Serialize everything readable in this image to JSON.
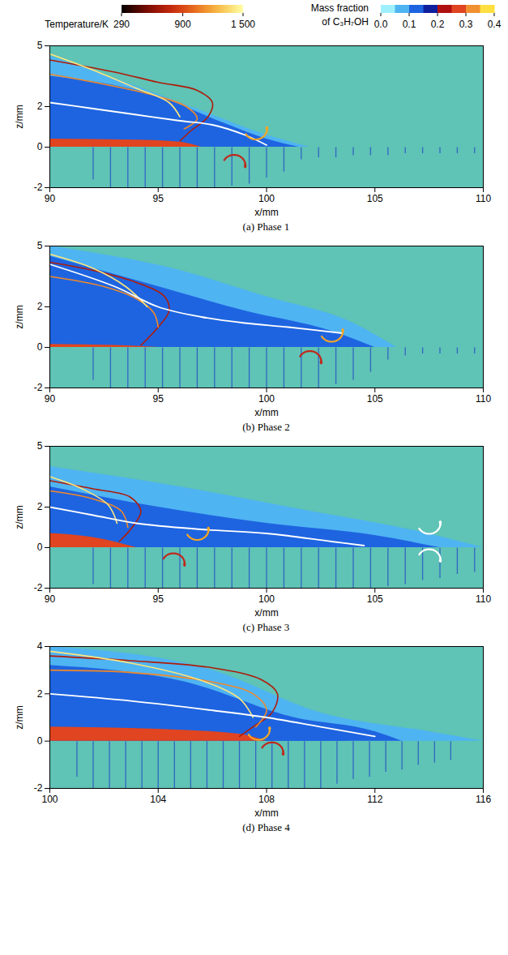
{
  "colorbars": [
    {
      "title": "Temperature/K",
      "range": [
        290,
        1500
      ],
      "ticks": [
        290,
        900,
        {
          "value": 1500,
          "label": "1 500"
        }
      ]
    },
    {
      "title": "Mass fraction of C₃H₇OH",
      "range": [
        0,
        0.4
      ],
      "ticks": [
        {
          "value": 0,
          "label": "0.0"
        },
        0.1,
        0.2,
        0.3,
        0.4
      ]
    }
  ],
  "chart_data": [
    {
      "type": "contour",
      "title": "(a) Phase 1",
      "xlabel": "x/mm",
      "ylabel": "z/mm",
      "xlim": [
        90,
        110
      ],
      "xticks": [
        90,
        95,
        100,
        105,
        110
      ],
      "ylim": [
        -2,
        5
      ],
      "yticks": [
        -2,
        0,
        2,
        5
      ],
      "mass_fraction_regions": [
        {
          "value": 0.05,
          "x": [
            90,
            94,
            97,
            100,
            102
          ],
          "z": [
            4.5,
            3,
            1.8,
            0.6,
            0
          ]
        },
        {
          "value": 0.1,
          "x": [
            90,
            95,
            98,
            100,
            101.5
          ],
          "z": [
            3.5,
            2.5,
            1.2,
            0.4,
            0
          ]
        },
        {
          "value": 0.15,
          "x": [
            90,
            92,
            95,
            97,
            99,
            100
          ],
          "z": [
            2.3,
            2.0,
            1.4,
            0.8,
            0.3,
            0
          ]
        },
        {
          "value": 0.25,
          "x": [
            90,
            94,
            96,
            97
          ],
          "z": [
            0.4,
            0.35,
            0.25,
            0
          ]
        }
      ],
      "jets": {
        "x": [
          92,
          92.8,
          93.6,
          94.4,
          95.2,
          96,
          96.8,
          97.6,
          98.4,
          99.2,
          100,
          100.8,
          101.6,
          102.4,
          103.2,
          104,
          104.8,
          105.6,
          106.4,
          107.2,
          108,
          108.8,
          109.6
        ],
        "z": [
          -1.6,
          -2,
          -2,
          -2,
          -2,
          -2,
          -2,
          -2,
          -1.9,
          -1.8,
          -1.5,
          -1.2,
          -0.6,
          -0.5,
          -0.5,
          -0.4,
          -0.4,
          -0.4,
          -0.3,
          -0.3,
          -0.3,
          -0.3,
          -0.3
        ]
      },
      "isotherms": [
        {
          "value": 700,
          "x": [
            90,
            93,
            95,
            96.8,
            97.5,
            97.3,
            96.5,
            96
          ],
          "z": [
            4.3,
            3.7,
            3.2,
            2.8,
            2.2,
            1.5,
            0.8,
            0.3
          ]
        },
        {
          "value": 1100,
          "x": [
            90,
            93,
            95,
            96.3,
            96.8,
            96.2
          ],
          "z": [
            3.6,
            3.0,
            2.5,
            2.0,
            1.4,
            0.9
          ]
        },
        {
          "value": 1400,
          "x": [
            90,
            92,
            94,
            95.5,
            96
          ],
          "z": [
            4.6,
            3.8,
            2.9,
            2.2,
            1.5
          ]
        }
      ],
      "curves": [
        {
          "color": "#ffffff",
          "x": [
            90,
            92,
            94,
            96,
            97.5,
            99,
            100
          ],
          "z": [
            2.2,
            1.9,
            1.6,
            1.3,
            1.1,
            0.6,
            0.1
          ]
        }
      ],
      "vortices": [
        {
          "x": 99.5,
          "z": 0.9,
          "color": "#f5a623",
          "direction": "counterclockwise"
        },
        {
          "x": 98.5,
          "z": -0.9,
          "color": "#c0281c",
          "direction": "clockwise"
        }
      ]
    },
    {
      "type": "contour",
      "title": "(b) Phase 2",
      "xlabel": "x/mm",
      "ylabel": "z/mm",
      "xlim": [
        90,
        110
      ],
      "xticks": [
        90,
        95,
        100,
        105,
        110
      ],
      "ylim": [
        -2,
        5
      ],
      "yticks": [
        -2,
        0,
        2,
        5
      ],
      "mass_fraction_regions": [
        {
          "value": 0.05,
          "x": [
            90,
            96,
            100,
            104,
            106
          ],
          "z": [
            5,
            3.8,
            2.5,
            1.2,
            0
          ]
        },
        {
          "value": 0.1,
          "x": [
            90,
            95,
            99,
            103,
            105
          ],
          "z": [
            4.5,
            3,
            1.8,
            0.8,
            0
          ]
        },
        {
          "value": 0.15,
          "x": [
            90,
            93,
            95,
            98,
            102,
            104
          ],
          "z": [
            3,
            2.3,
            1.5,
            0.9,
            0.5,
            0
          ]
        },
        {
          "value": 0.25,
          "x": [
            90,
            93,
            95
          ],
          "z": [
            0.15,
            0.1,
            0
          ]
        }
      ],
      "jets": {
        "x": [
          92,
          92.8,
          93.6,
          94.4,
          95.2,
          96,
          96.8,
          97.6,
          98.4,
          99.2,
          100,
          100.8,
          101.6,
          102.4,
          103.2,
          104,
          104.8,
          105.6,
          106.4,
          107.2,
          108,
          108.8,
          109.6
        ],
        "z": [
          -1.6,
          -2,
          -2,
          -2,
          -2,
          -2,
          -2,
          -2,
          -2,
          -2,
          -2,
          -2,
          -2,
          -2,
          -1.8,
          -1.6,
          -1.2,
          -0.6,
          -0.4,
          -0.3,
          -0.3,
          -0.3,
          -0.3
        ]
      },
      "isotherms": [
        {
          "value": 700,
          "x": [
            90,
            92,
            94,
            95.3,
            95.5,
            95,
            94.2
          ],
          "z": [
            4.2,
            3.8,
            3.2,
            2.5,
            1.8,
            1.0,
            0.1
          ]
        },
        {
          "value": 1100,
          "x": [
            90,
            92.5,
            94,
            94.8,
            95
          ],
          "z": [
            3.5,
            3.0,
            2.4,
            1.7,
            1.0
          ]
        },
        {
          "value": 1400,
          "x": [
            90,
            92,
            93.5,
            94.5
          ],
          "z": [
            4.6,
            3.9,
            3.0,
            2.0
          ]
        }
      ],
      "curves": [
        {
          "color": "#ffffff",
          "x": [
            90,
            93,
            95,
            97,
            99,
            101,
            103.5
          ],
          "z": [
            4.1,
            3.0,
            2.0,
            1.5,
            1.2,
            1.0,
            0.7
          ]
        }
      ],
      "vortices": [
        {
          "x": 103,
          "z": 0.8,
          "color": "#f5a623",
          "direction": "counterclockwise"
        },
        {
          "x": 102,
          "z": -0.7,
          "color": "#c0281c",
          "direction": "clockwise"
        }
      ]
    },
    {
      "type": "contour",
      "title": "(c) Phase 3",
      "xlabel": "x/mm",
      "ylabel": "z/mm",
      "xlim": [
        90,
        110
      ],
      "xticks": [
        90,
        95,
        100,
        105,
        110
      ],
      "ylim": [
        -2,
        5
      ],
      "yticks": [
        -2,
        0,
        2,
        5
      ],
      "mass_fraction_regions": [
        {
          "value": 0.05,
          "x": [
            90,
            96,
            102,
            107,
            110
          ],
          "z": [
            4,
            3,
            1.8,
            0.8,
            0
          ]
        },
        {
          "value": 0.1,
          "x": [
            90,
            95,
            100,
            105,
            108
          ],
          "z": [
            3,
            2,
            1.2,
            0.6,
            0
          ]
        },
        {
          "value": 0.15,
          "x": [
            90,
            94,
            97,
            100,
            104
          ],
          "z": [
            2,
            1.3,
            1.0,
            0.8,
            0
          ]
        },
        {
          "value": 0.25,
          "x": [
            90,
            92,
            94
          ],
          "z": [
            0.7,
            0.5,
            0
          ]
        },
        {
          "value": 0.3,
          "x": [
            90,
            91.5,
            93
          ],
          "z": [
            0.4,
            0.3,
            0
          ]
        }
      ],
      "jets": {
        "x": [
          92,
          92.8,
          93.6,
          94.4,
          95.2,
          96,
          96.8,
          97.6,
          98.4,
          99.2,
          100,
          100.8,
          101.6,
          102.4,
          103.2,
          104,
          104.8,
          105.6,
          106.4,
          107.2,
          108,
          108.8,
          109.6
        ],
        "z": [
          -1.8,
          -2,
          -2,
          -2,
          -2,
          -2,
          -2,
          -2,
          -2,
          -2,
          -2,
          -2,
          -2,
          -2,
          -2,
          -2,
          -2,
          -1.9,
          -1.8,
          -1.6,
          -1.5,
          -1.3,
          -1.2
        ]
      },
      "isotherms": [
        {
          "value": 700,
          "x": [
            90,
            92,
            93.7,
            94.2,
            93.8,
            93.2
          ],
          "z": [
            3.3,
            2.9,
            2.5,
            1.8,
            1.0,
            0.3
          ]
        },
        {
          "value": 1100,
          "x": [
            90,
            92,
            93.3,
            93.6
          ],
          "z": [
            2.8,
            2.4,
            1.8,
            1.0
          ]
        },
        {
          "value": 1400,
          "x": [
            90,
            91.5,
            92.7,
            93.1
          ],
          "z": [
            3.5,
            2.9,
            2.1,
            1.2
          ]
        }
      ],
      "curves": [
        {
          "color": "#ffffff",
          "x": [
            90,
            92,
            94,
            97,
            100,
            103,
            104.5
          ],
          "z": [
            2,
            1.6,
            1.2,
            0.9,
            0.7,
            0.3,
            0.1
          ]
        }
      ],
      "vortices": [
        {
          "x": 96.8,
          "z": 0.9,
          "color": "#f5a623",
          "direction": "counterclockwise"
        },
        {
          "x": 95.7,
          "z": -0.8,
          "color": "#c0281c",
          "direction": "clockwise"
        },
        {
          "x": 107.5,
          "z": 1.2,
          "color": "#ffffff",
          "direction": "counterclockwise"
        },
        {
          "x": 107.5,
          "z": -0.6,
          "color": "#ffffff",
          "direction": "clockwise"
        }
      ]
    },
    {
      "type": "contour",
      "title": "(d) Phase 4",
      "xlabel": "x/mm",
      "ylabel": "z/mm",
      "xlim": [
        100,
        116
      ],
      "xticks": [
        100,
        104,
        108,
        112,
        116
      ],
      "ylim": [
        -2,
        4
      ],
      "yticks": [
        -2,
        0,
        2,
        4
      ],
      "mass_fraction_regions": [
        {
          "value": 0.05,
          "x": [
            100,
            106,
            110,
            114,
            116
          ],
          "z": [
            4,
            3,
            1.2,
            0.4,
            0
          ]
        },
        {
          "value": 0.1,
          "x": [
            100,
            105,
            109,
            112,
            113
          ],
          "z": [
            3.2,
            2.5,
            1.0,
            0.4,
            0
          ]
        },
        {
          "value": 0.15,
          "x": [
            100,
            104,
            107,
            109,
            111
          ],
          "z": [
            2.5,
            2,
            1.2,
            0.5,
            0
          ]
        },
        {
          "value": 0.25,
          "x": [
            100,
            104,
            107,
            108
          ],
          "z": [
            0.6,
            0.5,
            0.3,
            0
          ]
        }
      ],
      "jets": {
        "x": [
          101,
          101.6,
          102.2,
          102.8,
          103.4,
          104,
          104.6,
          105.2,
          105.8,
          106.4,
          107,
          107.6,
          108.2,
          108.8,
          109.4,
          110,
          110.6,
          111.2,
          111.8,
          112.4,
          113,
          113.6,
          114.2,
          114.8
        ],
        "z": [
          -1.5,
          -2,
          -2,
          -2,
          -2,
          -2,
          -2,
          -2,
          -2,
          -2,
          -2,
          -2,
          -2,
          -2,
          -2,
          -2,
          -1.8,
          -1.6,
          -1.5,
          -1.3,
          -1.2,
          -1.0,
          -0.9,
          -0.8
        ]
      },
      "isotherms": [
        {
          "value": 700,
          "x": [
            100,
            103,
            106,
            107.8,
            108.4,
            108.2,
            107.5,
            107
          ],
          "z": [
            3.6,
            3.4,
            3.1,
            2.6,
            2.0,
            1.2,
            0.6,
            0.2
          ]
        },
        {
          "value": 1100,
          "x": [
            100,
            103,
            106,
            107.5,
            108,
            107.6
          ],
          "z": [
            3.0,
            2.9,
            2.5,
            2.0,
            1.3,
            0.6
          ]
        },
        {
          "value": 1400,
          "x": [
            100,
            103,
            105.5,
            107,
            107.5
          ],
          "z": [
            3.8,
            3.3,
            2.6,
            1.8,
            1.0
          ]
        }
      ],
      "curves": [
        {
          "color": "#ffffff",
          "x": [
            100,
            103,
            106,
            108,
            110,
            112
          ],
          "z": [
            2.0,
            1.7,
            1.3,
            1.0,
            0.6,
            0.2
          ]
        }
      ],
      "vortices": [
        {
          "x": 107.7,
          "z": 0.5,
          "color": "#f5a623",
          "direction": "counterclockwise"
        },
        {
          "x": 108.2,
          "z": -0.5,
          "color": "#c0281c",
          "direction": "clockwise"
        }
      ]
    }
  ]
}
